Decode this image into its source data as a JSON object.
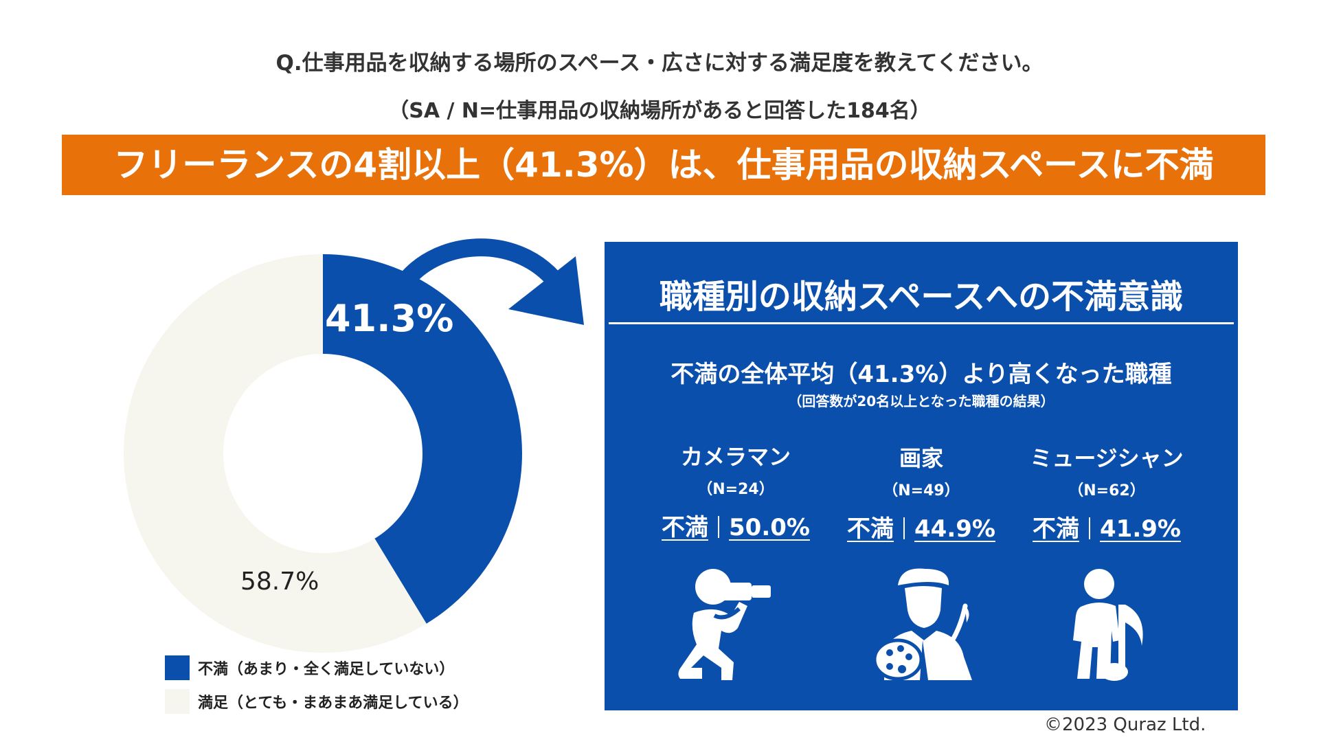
{
  "header": {
    "question": "Q.仕事用品を収納する場所のスペース・広さに対する満足度を教えてください。",
    "sample": "（SA / N=仕事用品の収納場所があると回答した184名）",
    "banner": "フリーランスの4割以上（41.3%）は、仕事用品の収納スペースに不満"
  },
  "colors": {
    "orange": "#e8710a",
    "blue": "#0b4fad",
    "light": "#f6f6ee"
  },
  "chart_data": {
    "type": "pie",
    "variant": "donut",
    "slices": [
      {
        "label": "不満（あまり・全く満足していない）",
        "value": 41.3,
        "display": "41.3%",
        "color": "#0b4fad"
      },
      {
        "label": "満足（とても・まあまあ満足している）",
        "value": 58.7,
        "display": "58.7%",
        "color": "#f6f6ee"
      }
    ],
    "legend_position": "bottom"
  },
  "panel": {
    "title": "職種別の収納スペースへの不満意識",
    "subtitle": "不満の全体平均（41.3%）より高くなった職種",
    "note": "（回答数が20名以上となった職種の結果）",
    "jobs": [
      {
        "name": "カメラマン",
        "n": "（N=24）",
        "label": "不満",
        "value": "50.0%",
        "icon": "photographer-icon"
      },
      {
        "name": "画家",
        "n": "（N=49）",
        "label": "不満",
        "value": "44.9%",
        "icon": "painter-icon"
      },
      {
        "name": "ミュージシャン",
        "n": "（N=62）",
        "label": "不満",
        "value": "41.9%",
        "icon": "musician-icon"
      }
    ]
  },
  "footer": {
    "copyright": "©2023 Quraz Ltd."
  }
}
